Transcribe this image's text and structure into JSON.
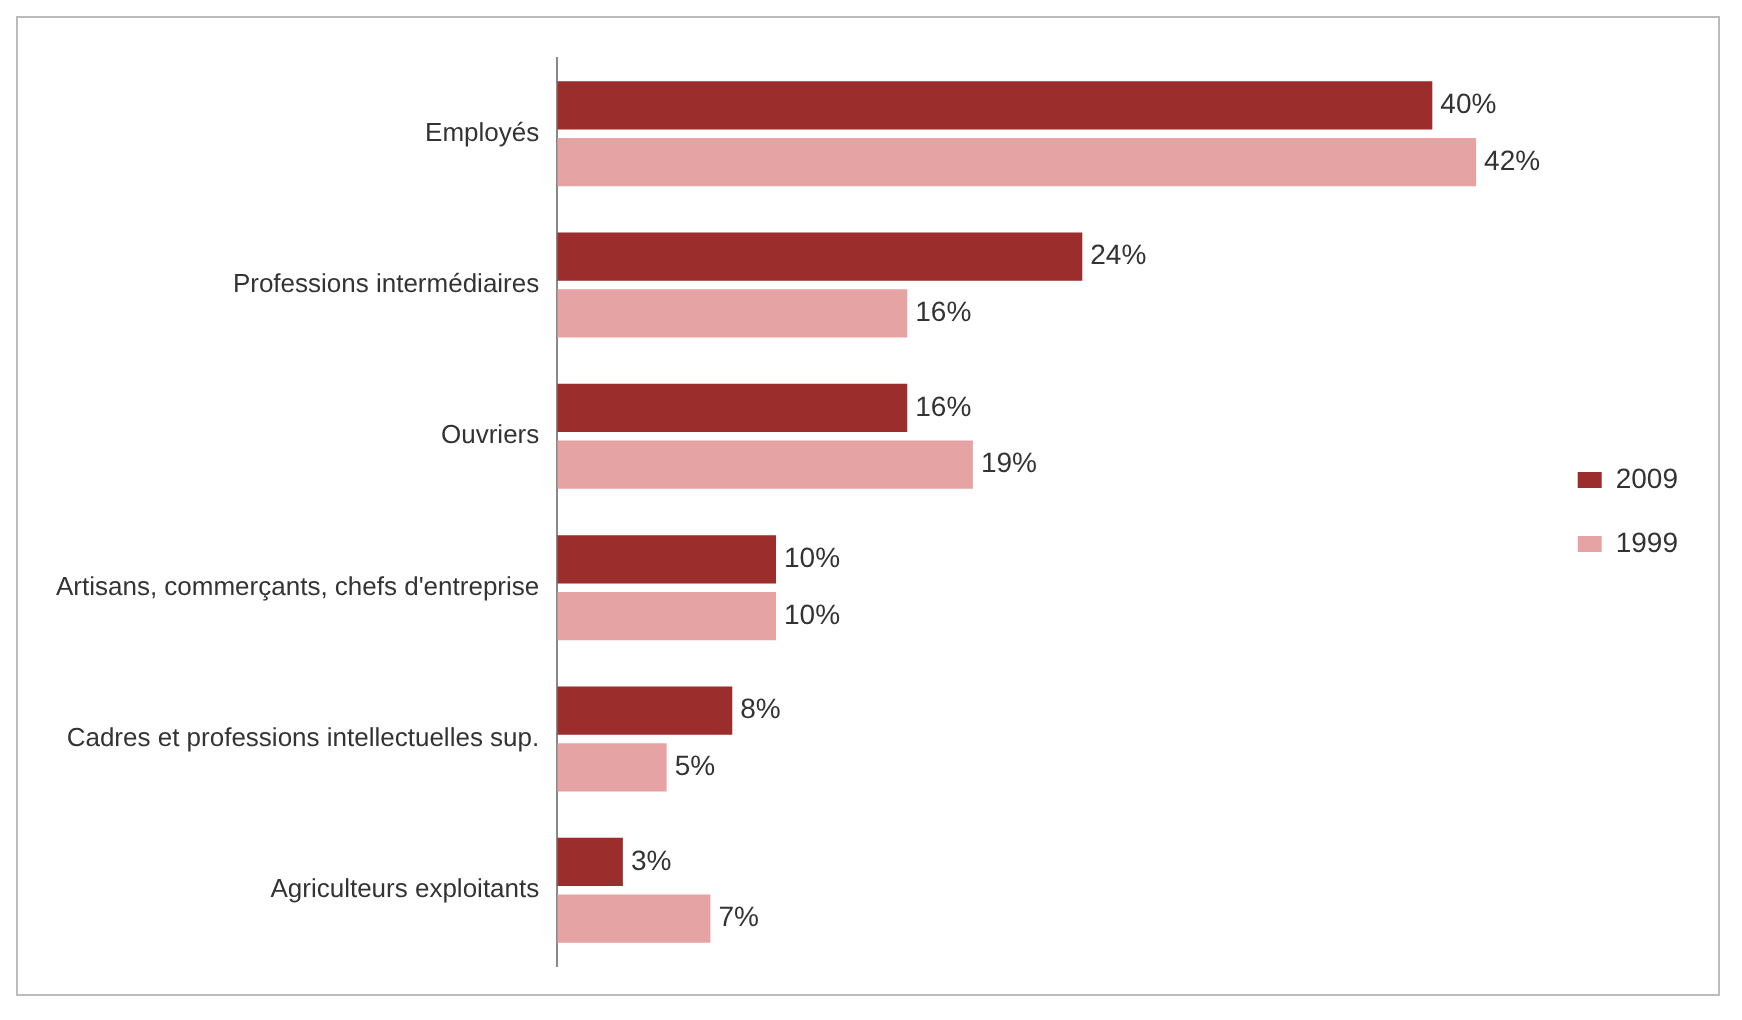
{
  "chart_data": {
    "type": "bar",
    "orientation": "horizontal",
    "categories": [
      "Employés",
      "Professions intermédiaires",
      "Ouvriers",
      "Artisans, commerçants, chefs d'entreprise",
      "Cadres et professions intellectuelles sup.",
      "Agriculteurs exploitants"
    ],
    "series": [
      {
        "name": "2009",
        "color": "#9b2d2d",
        "values": [
          40,
          24,
          16,
          10,
          8,
          3
        ],
        "value_labels": [
          "40%",
          "24%",
          "16%",
          "10%",
          "8%",
          "3%"
        ]
      },
      {
        "name": "1999",
        "color": "#e6a3a3",
        "values": [
          42,
          16,
          19,
          10,
          5,
          7
        ],
        "value_labels": [
          "42%",
          "16%",
          "19%",
          "10%",
          "5%",
          "7%"
        ]
      }
    ],
    "legend": "right",
    "grid": false,
    "tick_labels": "y"
  }
}
